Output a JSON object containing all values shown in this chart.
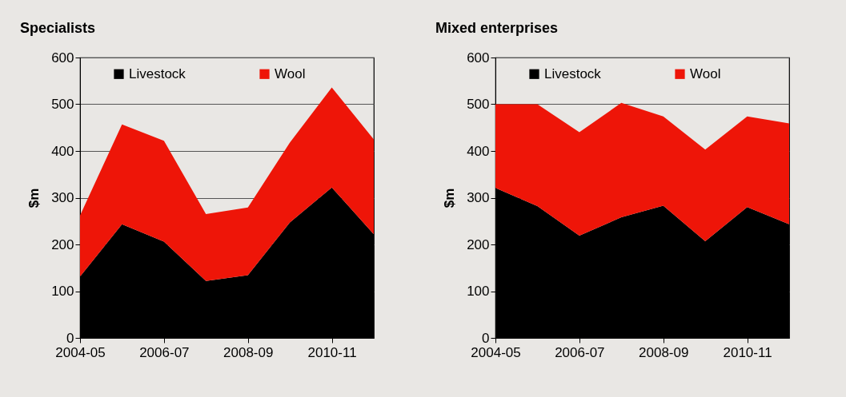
{
  "chart_data": [
    {
      "type": "area",
      "stacked": true,
      "title": "Specialists",
      "ylabel": "$m",
      "categories": [
        "2004-05",
        null,
        "2006-07",
        null,
        "2008-09",
        null,
        "2010-11",
        null
      ],
      "series": [
        {
          "name": "Livestock",
          "color": "#000000",
          "values": [
            131,
            243,
            206,
            122,
            134,
            247,
            322,
            222
          ]
        },
        {
          "name": "Wool",
          "color": "#ee1508",
          "values": [
            131,
            214,
            216,
            143,
            145,
            171,
            214,
            203
          ]
        }
      ],
      "ylim": [
        0,
        600
      ],
      "yticks": [
        0,
        100,
        200,
        300,
        400,
        500,
        600
      ],
      "grid": "y",
      "legend": "top"
    },
    {
      "type": "area",
      "stacked": true,
      "title": "Mixed enterprises",
      "ylabel": "$m",
      "categories": [
        "2004-05",
        null,
        "2006-07",
        null,
        "2008-09",
        null,
        "2010-11",
        null
      ],
      "series": [
        {
          "name": "Livestock",
          "color": "#000000",
          "values": [
            321,
            282,
            219,
            258,
            283,
            207,
            280,
            243
          ]
        },
        {
          "name": "Wool",
          "color": "#ee1508",
          "values": [
            179,
            218,
            221,
            245,
            191,
            196,
            194,
            216
          ]
        }
      ],
      "ylim": [
        0,
        600
      ],
      "yticks": [
        0,
        100,
        200,
        300,
        400,
        500,
        600
      ],
      "grid": "y",
      "legend": "top"
    }
  ]
}
